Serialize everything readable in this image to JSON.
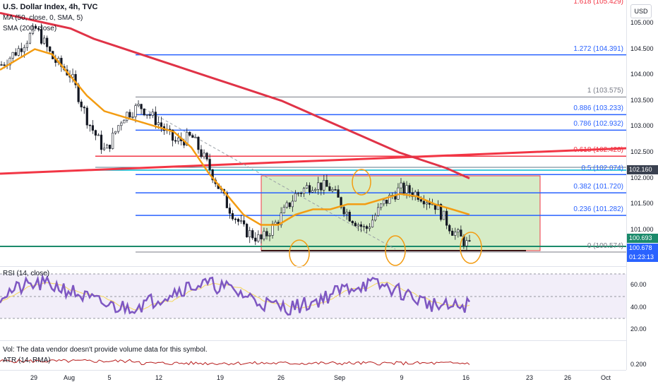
{
  "header": {
    "title": "U.S. Dollar Index, 4h, TVC",
    "ma_label": "MA (50, close, 0, SMA, 5)",
    "sma_label": "SMA (200, close)",
    "currency_badge": "USD"
  },
  "price_axis": {
    "ticks": [
      "105.000",
      "104.500",
      "104.000",
      "103.500",
      "103.000",
      "102.500",
      "102.000",
      "101.500",
      "101.000"
    ],
    "tags": [
      {
        "label": "102.160",
        "color": "#3a4150"
      },
      {
        "label": "100.693",
        "color": "#1b8a6b"
      },
      {
        "label": "100.678",
        "color": "#2962ff"
      },
      {
        "label": "01:23:13",
        "color": "#2962ff"
      }
    ]
  },
  "fib_levels": [
    {
      "label": "1.618 (105.429)",
      "color": "#f23645"
    },
    {
      "label": "1.272 (104.391)",
      "color": "#2962ff"
    },
    {
      "label": "1 (103.575)",
      "color": "#787b86"
    },
    {
      "label": "0.886 (103.233)",
      "color": "#2962ff"
    },
    {
      "label": "0.786 (102.932)",
      "color": "#2962ff"
    },
    {
      "label": "0.618 (102.428)",
      "color": "#f23645"
    },
    {
      "label": "0.5 (102.074)",
      "color": "#2962ff"
    },
    {
      "label": "0.382 (101.720)",
      "color": "#2962ff"
    },
    {
      "label": "0.236 (101.282)",
      "color": "#2962ff"
    },
    {
      "label": "0 (100.574)",
      "color": "#787b86"
    }
  ],
  "rsi": {
    "label": "RSI (14, close)",
    "ticks": [
      "60.00",
      "40.00",
      "20.00"
    ]
  },
  "volume_note": "Vol: The data vendor doesn't provide volume data for this symbol.",
  "atr": {
    "label": "ATR (14, RMA)",
    "ticks": [
      "0.200"
    ]
  },
  "date_axis": [
    "29",
    "Aug",
    "5",
    "12",
    "19",
    "26",
    "Sep",
    "9",
    "16",
    "23",
    "26",
    "Oct"
  ],
  "chart_data": {
    "type": "line",
    "title": "U.S. Dollar Index, 4h, TVC",
    "ylim": [
      100.4,
      105.6
    ],
    "series": [
      {
        "name": "U.S. Dollar Index",
        "values": [
          104.2,
          104.5,
          104.9,
          104.3,
          104.0,
          103.1,
          102.5,
          103.2,
          103.4,
          103.1,
          102.7,
          102.8,
          102.2,
          101.5,
          101.0,
          100.8,
          101.2,
          101.7,
          101.9,
          101.8,
          101.3,
          101.0,
          101.5,
          101.8,
          101.7,
          101.5,
          101.0,
          100.68
        ]
      },
      {
        "name": "MA (50, close, 0, SMA, 5)",
        "values": [
          104.1,
          104.3,
          104.5,
          104.4,
          104.0,
          103.6,
          103.3,
          103.2,
          103.1,
          103.0,
          102.9,
          102.6,
          102.1,
          101.7,
          101.3,
          101.1,
          101.1,
          101.3,
          101.4,
          101.4,
          101.5,
          101.5,
          101.6,
          101.7,
          101.65,
          101.5,
          101.4,
          101.3
        ]
      },
      {
        "name": "SMA (200, close)",
        "values": [
          105.2,
          105.1,
          105.0,
          104.9,
          104.7,
          104.55,
          104.4,
          104.25,
          104.1,
          103.95,
          103.8,
          103.65,
          103.5,
          103.3,
          103.1,
          102.9,
          102.7,
          102.5,
          102.35,
          102.2,
          102.0
        ]
      }
    ]
  }
}
